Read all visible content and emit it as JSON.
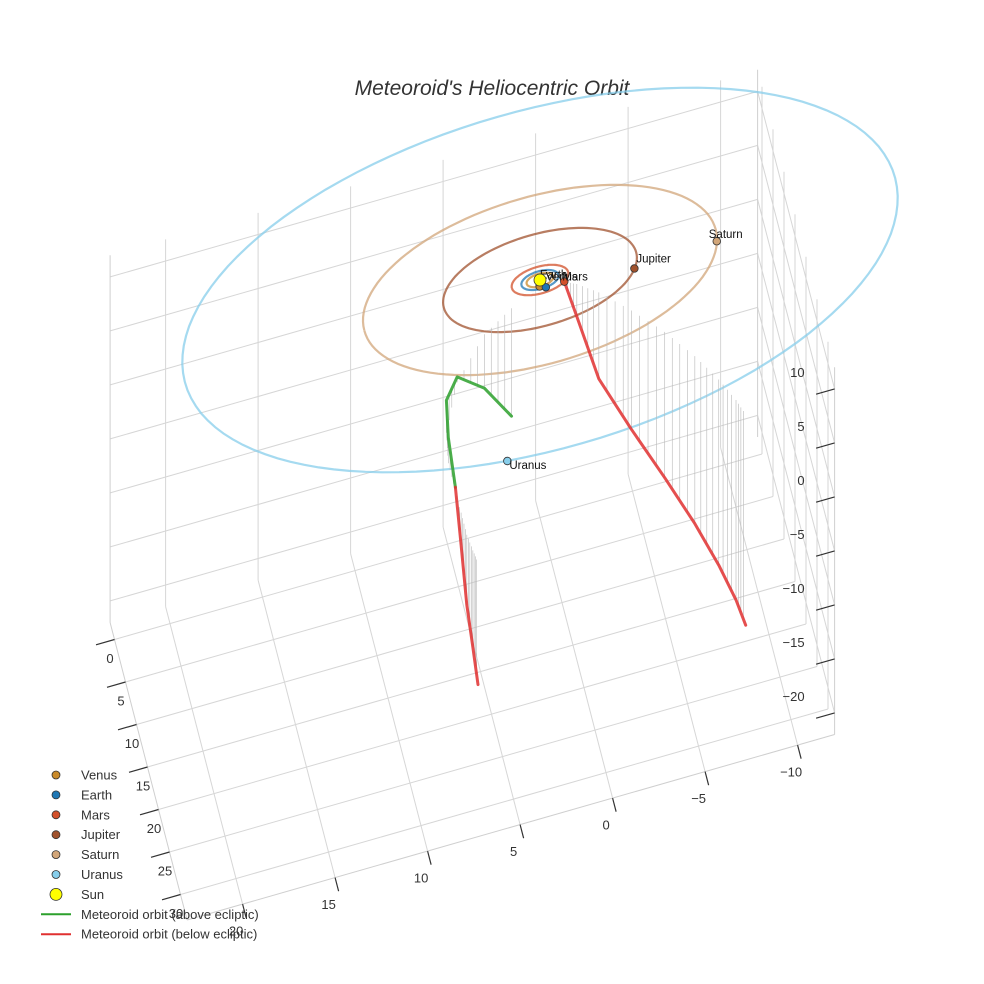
{
  "chart_data": {
    "type": "line",
    "title": "Meteoroid's Heliocentric Orbit",
    "xlabel": "",
    "ylabel": "",
    "zlabel": "",
    "grid": true,
    "legend_position": "bottom-left",
    "axes": {
      "x": {
        "ticks": [
          -10,
          -5,
          0,
          5,
          10,
          15,
          20
        ],
        "range": [
          -12,
          23
        ]
      },
      "y": {
        "ticks": [
          0,
          5,
          10,
          15,
          20,
          25,
          30
        ],
        "range": [
          -2,
          33
        ]
      },
      "z": {
        "ticks": [
          -20,
          -15,
          -10,
          -5,
          0,
          5,
          10
        ],
        "range": [
          -22,
          12
        ]
      }
    },
    "planets": [
      {
        "name": "Venus",
        "radius": 0.72,
        "x": 0.1,
        "y": 0.7,
        "color": "#c98a2a",
        "labeled": true
      },
      {
        "name": "Earth",
        "radius": 1.0,
        "x": -0.2,
        "y": 0.98,
        "color": "#1f77b4",
        "labeled": true
      },
      {
        "name": "Mars",
        "radius": 1.52,
        "x": -1.2,
        "y": 0.94,
        "color": "#d2502a",
        "labeled": true
      },
      {
        "name": "Jupiter",
        "radius": 5.2,
        "x": -4.9,
        "y": 1.7,
        "color": "#a0522d",
        "labeled": true
      },
      {
        "name": "Saturn",
        "radius": 9.5,
        "x": -9.4,
        "y": 1.3,
        "color": "#d2a679",
        "labeled": true
      },
      {
        "name": "Uranus",
        "radius": 19.2,
        "x": 4.0,
        "y": 18.8,
        "color": "#87ceeb",
        "labeled": true
      },
      {
        "name": "Sun",
        "radius": 0,
        "x": 0,
        "y": 0,
        "color": "#ffff00",
        "labeled": false
      }
    ],
    "series": [
      {
        "name": "Meteoroid orbit (above ecliptic)",
        "color": "#2ca02c",
        "points": [
          [
            1.8,
            2.2,
            -10.0
          ],
          [
            3.5,
            4.2,
            -5.0
          ],
          [
            5.5,
            8.6,
            0.5
          ],
          [
            6.7,
            13.8,
            3.0
          ],
          [
            7.0,
            17.2,
            2.4
          ],
          [
            7.0,
            20.4,
            0.3
          ]
        ]
      },
      {
        "name": "Meteoroid orbit (below ecliptic)",
        "color": "#e03030",
        "points": [
          [
            7.0,
            20.4,
            0.3
          ],
          [
            7.0,
            23.0,
            -3.0
          ],
          [
            7.0,
            25.6,
            -6.5
          ],
          [
            6.9,
            27.5,
            -9.0
          ],
          [
            6.8,
            29.0,
            -11.3
          ],
          [
            -1.2,
            0.94,
            0.0
          ],
          [
            -1.8,
            1.6,
            -3.0
          ],
          [
            -2.8,
            3.2,
            -8.0
          ],
          [
            -4.2,
            6.2,
            -11.0
          ],
          [
            -5.6,
            9.6,
            -13.5
          ],
          [
            -6.8,
            13.2,
            -15.5
          ],
          [
            -7.7,
            16.5,
            -17.2
          ],
          [
            -8.3,
            19.3,
            -18.5
          ],
          [
            -8.6,
            21.2,
            -19.5
          ]
        ]
      }
    ]
  },
  "legend": {
    "items": [
      {
        "label": "Venus",
        "kind": "marker",
        "color": "#c98a2a"
      },
      {
        "label": "Earth",
        "kind": "marker",
        "color": "#1f77b4"
      },
      {
        "label": "Mars",
        "kind": "marker",
        "color": "#d2502a"
      },
      {
        "label": "Jupiter",
        "kind": "marker",
        "color": "#a0522d"
      },
      {
        "label": "Saturn",
        "kind": "marker",
        "color": "#d2a679"
      },
      {
        "label": "Uranus",
        "kind": "marker",
        "color": "#87ceeb"
      },
      {
        "label": "Sun",
        "kind": "marker-large",
        "color": "#ffff00"
      },
      {
        "label": "Meteoroid orbit (above ecliptic)",
        "kind": "line",
        "color": "#2ca02c"
      },
      {
        "label": "Meteoroid orbit (below ecliptic)",
        "kind": "line",
        "color": "#e03030"
      }
    ]
  }
}
